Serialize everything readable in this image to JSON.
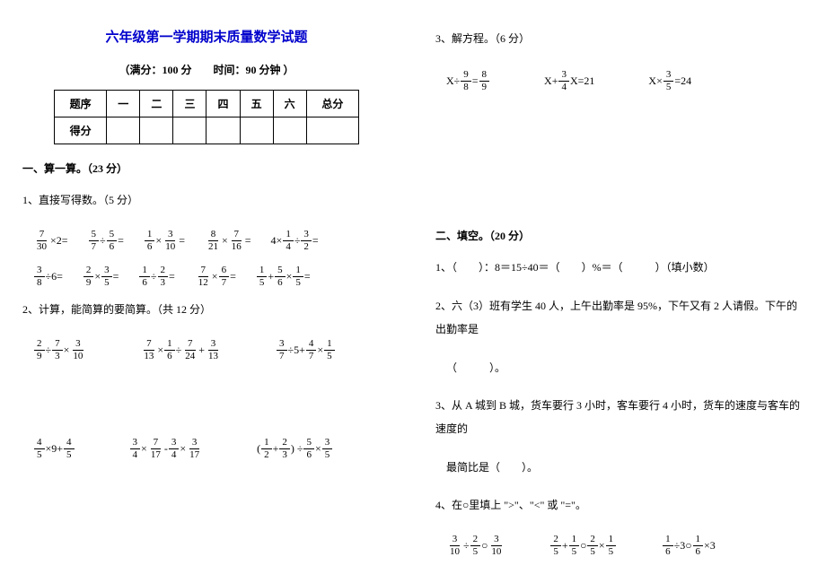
{
  "title": "六年级第一学期期末质量数学试题",
  "subtitle": "（满分：100 分　　时间：90 分钟 ）",
  "score_table": {
    "row1": [
      "题序",
      "一",
      "二",
      "三",
      "四",
      "五",
      "六",
      "总分"
    ],
    "row2_label": "得分"
  },
  "left": {
    "sec1_head": "一、算一算。（23 分）",
    "p1": "1、直接写得数。（5 分）",
    "calc_row1": [
      {
        "n1": "7",
        "d1": "30",
        "op": "×2="
      },
      {
        "n1": "5",
        "d1": "7",
        "mid": "÷",
        "n2": "5",
        "d2": "6",
        "tail": "="
      },
      {
        "n1": "1",
        "d1": "6",
        "mid": "×",
        "n2": "3",
        "d2": "10",
        "tail": "="
      },
      {
        "n1": "8",
        "d1": "21",
        "mid": "×",
        "n2": "7",
        "d2": "16",
        "tail": "="
      },
      {
        "pre": "4×",
        "n1": "1",
        "d1": "4",
        "mid": "÷",
        "n2": "3",
        "d2": "2",
        "tail": "="
      }
    ],
    "calc_row2": [
      {
        "n1": "3",
        "d1": "8",
        "op": "÷6="
      },
      {
        "n1": "2",
        "d1": "9",
        "mid": "×",
        "n2": "3",
        "d2": "5",
        "tail": "="
      },
      {
        "n1": "1",
        "d1": "6",
        "mid": "÷",
        "n2": "2",
        "d2": "3",
        "tail": "="
      },
      {
        "n1": "7",
        "d1": "12",
        "mid": "×",
        "n2": "6",
        "d2": "7",
        "tail": "="
      },
      {
        "n1": "1",
        "d1": "5",
        "mid": "+",
        "n2": "5",
        "d2": "6",
        "mid2": "×",
        "n3": "1",
        "d3": "5",
        "tail": "="
      }
    ],
    "p2": "2、计算，能简算的要简算。（共 12 分）",
    "calc2_row1": [
      {
        "n1": "2",
        "d1": "9",
        "mid": "÷",
        "n2": "7",
        "d2": "3",
        "mid2": "×",
        "n3": "3",
        "d3": "10"
      },
      {
        "n1": "7",
        "d1": "13",
        "mid": "×",
        "n2": "1",
        "d2": "6",
        "mid2": "÷",
        "n3": "7",
        "d3": "24",
        "mid3": "+",
        "n4": "3",
        "d4": "13"
      },
      {
        "n1": "3",
        "d1": "7",
        "mid": "÷5+",
        "n2": "4",
        "d2": "7",
        "mid2": "×",
        "n3": "1",
        "d3": "5"
      }
    ],
    "calc2_row2": [
      {
        "n1": "4",
        "d1": "5",
        "mid": "×9+",
        "n2": "4",
        "d2": "5"
      },
      {
        "n1": "3",
        "d1": "4",
        "mid": "×",
        "n2": "7",
        "d2": "17",
        "mid2": "-",
        "n3": "3",
        "d3": "4",
        "mid3": "×",
        "n4": "3",
        "d4": "17"
      },
      {
        "pre": "(",
        "n1": "1",
        "d1": "2",
        "mid": "+",
        "n2": "2",
        "d2": "3",
        "mid2": ") ÷",
        "n3": "5",
        "d3": "6",
        "mid3": "×",
        "n4": "3",
        "d4": "5"
      }
    ]
  },
  "right": {
    "p3_head": "3、解方程。（6 分）",
    "eq_row": [
      {
        "pre": "X÷",
        "n1": "9",
        "d1": "8",
        "mid": "=",
        "n2": "8",
        "d2": "9"
      },
      {
        "pre": "X+",
        "n1": "3",
        "d1": "4",
        "mid": "X=21"
      },
      {
        "pre": "X×",
        "n1": "3",
        "d1": "5",
        "mid": "=24"
      }
    ],
    "sec2_head": "二、填空。（20 分）",
    "q1": "1、（　　）：8＝15÷40＝（　　）%＝（　　　）（填小数）",
    "q2a": "2、六（3）班有学生 40 人，上午出勤率是 95%，下午又有 2 人请假。下午的出勤率是",
    "q2b": "（　　　）。",
    "q3a": "3、从 A 城到 B 城，货车要行 3 小时，客车要行 4 小时，货车的速度与客车的速度的",
    "q3b": "最简比是（　　）。",
    "q4": "4、在○里填上 \">\"、\"<\" 或 \"=\"。",
    "q4_row": [
      {
        "n1": "3",
        "d1": "10",
        "mid": "÷",
        "n2": "2",
        "d2": "5",
        "mid2": "○",
        "n3": "3",
        "d3": "10"
      },
      {
        "n1": "2",
        "d1": "5",
        "mid": "+",
        "n2": "1",
        "d2": "5",
        "mid2": "○",
        "n3": "2",
        "d3": "5",
        "mid3": "×",
        "n4": "1",
        "d4": "5"
      },
      {
        "n1": "1",
        "d1": "6",
        "mid": "÷3○",
        "n2": "1",
        "d2": "6",
        "mid2": "×3"
      }
    ]
  },
  "colors": {
    "title_color": "#0000cc",
    "text_color": "#000000",
    "bg": "#ffffff",
    "border": "#000000"
  }
}
